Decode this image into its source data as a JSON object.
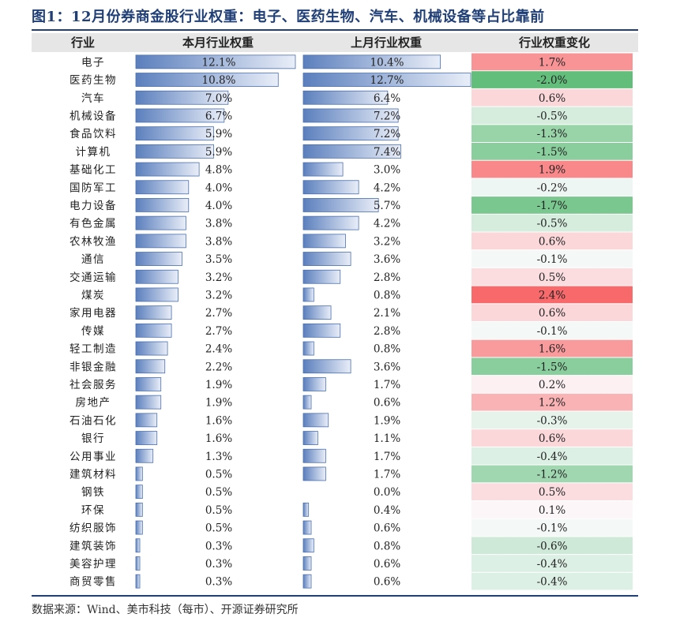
{
  "title": "图1：12月份券商金股行业权重：电子、医药生物、汽车、机械设备等占比靠前",
  "source": "数据来源：Wind、美市科技（每市）、开源证券研究所",
  "colors": {
    "title": "#1f3f76",
    "header_bg": "#e6e6e6",
    "bar_dark": "#5b7fbd",
    "bar_light": "#e9eef8",
    "bar_border": "#4a6fae",
    "positive_strong": "#f8696b",
    "negative_strong": "#63be7b",
    "neutral": "#fcfcff"
  },
  "chart_data": {
    "type": "table",
    "columns": [
      "行业",
      "本月行业权重",
      "上月行业权重",
      "行业权重变化"
    ],
    "sectors": [
      "电子",
      "医药生物",
      "汽车",
      "机械设备",
      "食品饮料",
      "计算机",
      "基础化工",
      "国防军工",
      "电力设备",
      "有色金属",
      "农林牧渔",
      "通信",
      "交通运输",
      "煤炭",
      "家用电器",
      "传媒",
      "轻工制造",
      "非银金融",
      "社会服务",
      "房地产",
      "石油石化",
      "银行",
      "公用事业",
      "建筑材料",
      "钢铁",
      "环保",
      "纺织服饰",
      "建筑装饰",
      "美容护理",
      "商贸零售"
    ],
    "current_weight": [
      12.1,
      10.8,
      7.0,
      6.7,
      5.9,
      5.9,
      4.8,
      4.0,
      4.0,
      3.8,
      3.8,
      3.5,
      3.2,
      3.2,
      2.7,
      2.7,
      2.4,
      2.2,
      1.9,
      1.9,
      1.6,
      1.6,
      1.3,
      0.5,
      0.5,
      0.5,
      0.5,
      0.3,
      0.3,
      0.3
    ],
    "current_labels": [
      "12.1%",
      "10.8%",
      "7.0%",
      "6.7%",
      "5.9%",
      "5.9%",
      "4.8%",
      "4.0%",
      "4.0%",
      "3.8%",
      "3.8%",
      "3.5%",
      "3.2%",
      "3.2%",
      "2.7%",
      "2.7%",
      "2.4%",
      "2.2%",
      "1.9%",
      "1.9%",
      "1.6%",
      "1.6%",
      "1.3%",
      "0.5%",
      "0.5%",
      "0.5%",
      "0.5%",
      "0.3%",
      "0.3%",
      "0.3%"
    ],
    "previous_weight": [
      10.4,
      12.7,
      6.4,
      7.2,
      7.2,
      7.4,
      3.0,
      4.2,
      5.7,
      4.2,
      3.2,
      3.6,
      2.8,
      0.8,
      2.1,
      2.8,
      0.8,
      3.6,
      1.7,
      0.6,
      1.9,
      1.1,
      1.7,
      1.7,
      0.0,
      0.4,
      0.6,
      0.8,
      0.6,
      0.6
    ],
    "previous_labels": [
      "10.4%",
      "12.7%",
      "6.4%",
      "7.2%",
      "7.2%",
      "7.4%",
      "3.0%",
      "4.2%",
      "5.7%",
      "4.2%",
      "3.2%",
      "3.6%",
      "2.8%",
      "0.8%",
      "2.1%",
      "2.8%",
      "0.8%",
      "3.6%",
      "1.7%",
      "0.6%",
      "1.9%",
      "1.1%",
      "1.7%",
      "1.7%",
      "0.0%",
      "0.4%",
      "0.6%",
      "0.8%",
      "0.6%",
      "0.6%"
    ],
    "change": [
      1.7,
      -2.0,
      0.6,
      -0.5,
      -1.3,
      -1.5,
      1.9,
      -0.2,
      -1.7,
      -0.5,
      0.6,
      -0.1,
      0.5,
      2.4,
      0.6,
      -0.1,
      1.6,
      -1.5,
      0.2,
      1.2,
      -0.3,
      0.6,
      -0.4,
      -1.2,
      0.5,
      0.1,
      -0.1,
      -0.6,
      -0.4,
      -0.4
    ],
    "change_labels": [
      "1.7%",
      "-2.0%",
      "0.6%",
      "-0.5%",
      "-1.3%",
      "-1.5%",
      "1.9%",
      "-0.2%",
      "-1.7%",
      "-0.5%",
      "0.6%",
      "-0.1%",
      "0.5%",
      "2.4%",
      "0.6%",
      "-0.1%",
      "1.6%",
      "-1.5%",
      "0.2%",
      "1.2%",
      "-0.3%",
      "0.6%",
      "-0.4%",
      "-1.2%",
      "0.5%",
      "0.1%",
      "-0.1%",
      "-0.6%",
      "-0.4%",
      "-0.4%"
    ],
    "weight_max": 12.7,
    "change_range": [
      -2.0,
      2.4
    ]
  }
}
